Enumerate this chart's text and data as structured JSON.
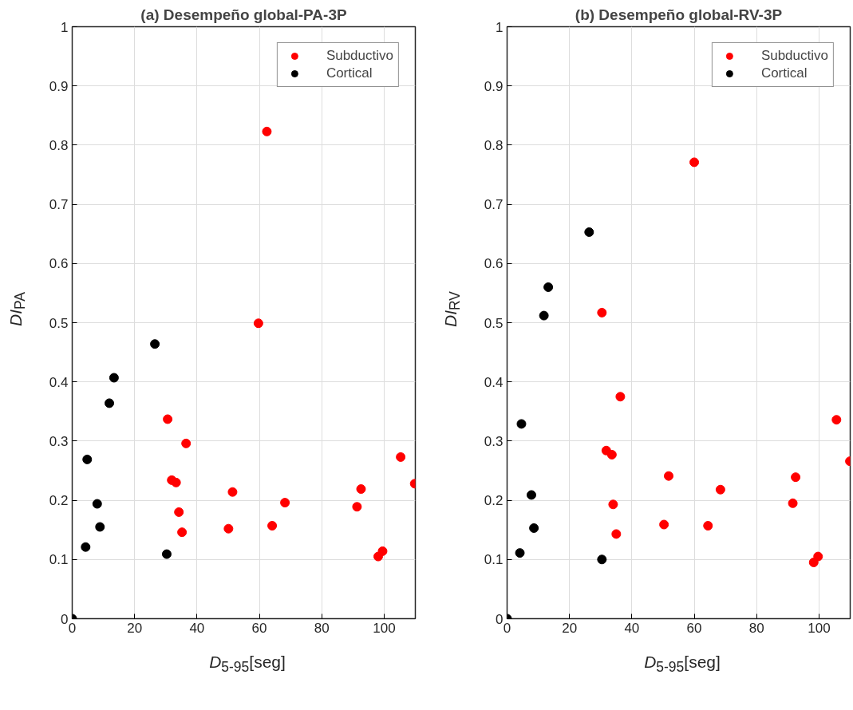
{
  "chart_data": [
    {
      "type": "scatter",
      "title": "(a) Desempeño global-PA-3P",
      "xlabel": "D$_{5-95}$[seg]",
      "ylabel": "DI$_{PA}$",
      "xlim": [
        0,
        110
      ],
      "xticks": [
        0,
        20,
        40,
        60,
        80,
        100
      ],
      "ylim": [
        0,
        1
      ],
      "yticks": [
        0,
        0.1,
        0.2,
        0.3,
        0.4,
        0.5,
        0.6,
        0.7,
        0.8,
        0.9,
        1
      ],
      "grid": true,
      "legend": "top right",
      "marker": "circle",
      "series": [
        {
          "name": "Subductivo",
          "color": "#ff0000",
          "x": [
            59.7,
            62.4,
            30.6,
            36.5,
            31.9,
            33.3,
            34.2,
            35.2,
            51.4,
            50.1,
            64.1,
            68.2,
            91.3,
            92.6,
            98.1,
            99.5,
            105.3,
            109.8
          ],
          "values": [
            0.499,
            0.823,
            0.337,
            0.296,
            0.234,
            0.23,
            0.18,
            0.146,
            0.214,
            0.152,
            0.157,
            0.196,
            0.189,
            0.219,
            0.105,
            0.114,
            0.273,
            0.228
          ]
        },
        {
          "name": "Cortical",
          "color": "#000000",
          "x": [
            26.5,
            13.4,
            11.9,
            4.8,
            8.0,
            8.9,
            4.3,
            30.3,
            0
          ],
          "values": [
            0.464,
            0.407,
            0.364,
            0.269,
            0.194,
            0.155,
            0.121,
            0.109,
            0
          ]
        }
      ]
    },
    {
      "type": "scatter",
      "title": "(b) Desempeño global-RV-3P",
      "xlabel": "D$_{5-95}$[seg]",
      "ylabel": "DI$_{RV}$",
      "xlim": [
        0,
        110
      ],
      "xticks": [
        0,
        20,
        40,
        60,
        80,
        100
      ],
      "ylim": [
        0,
        1
      ],
      "yticks": [
        0,
        0.1,
        0.2,
        0.3,
        0.4,
        0.5,
        0.6,
        0.7,
        0.8,
        0.9,
        1
      ],
      "grid": true,
      "legend": "top right",
      "marker": "circle",
      "series": [
        {
          "name": "Subductivo",
          "color": "#ff0000",
          "x": [
            60.0,
            30.4,
            36.3,
            31.8,
            33.6,
            51.8,
            68.4,
            92.5,
            91.6,
            34.0,
            50.3,
            64.4,
            35.0,
            99.7,
            98.3,
            105.6,
            109.9
          ],
          "values": [
            0.771,
            0.517,
            0.375,
            0.284,
            0.277,
            0.241,
            0.218,
            0.239,
            0.195,
            0.193,
            0.159,
            0.157,
            0.143,
            0.105,
            0.095,
            0.336,
            0.266
          ]
        },
        {
          "name": "Cortical",
          "color": "#000000",
          "x": [
            26.3,
            13.2,
            11.8,
            4.6,
            7.8,
            8.6,
            4.1,
            30.4,
            0
          ],
          "values": [
            0.653,
            0.56,
            0.512,
            0.329,
            0.209,
            0.153,
            0.111,
            0.1,
            0
          ]
        }
      ]
    }
  ]
}
